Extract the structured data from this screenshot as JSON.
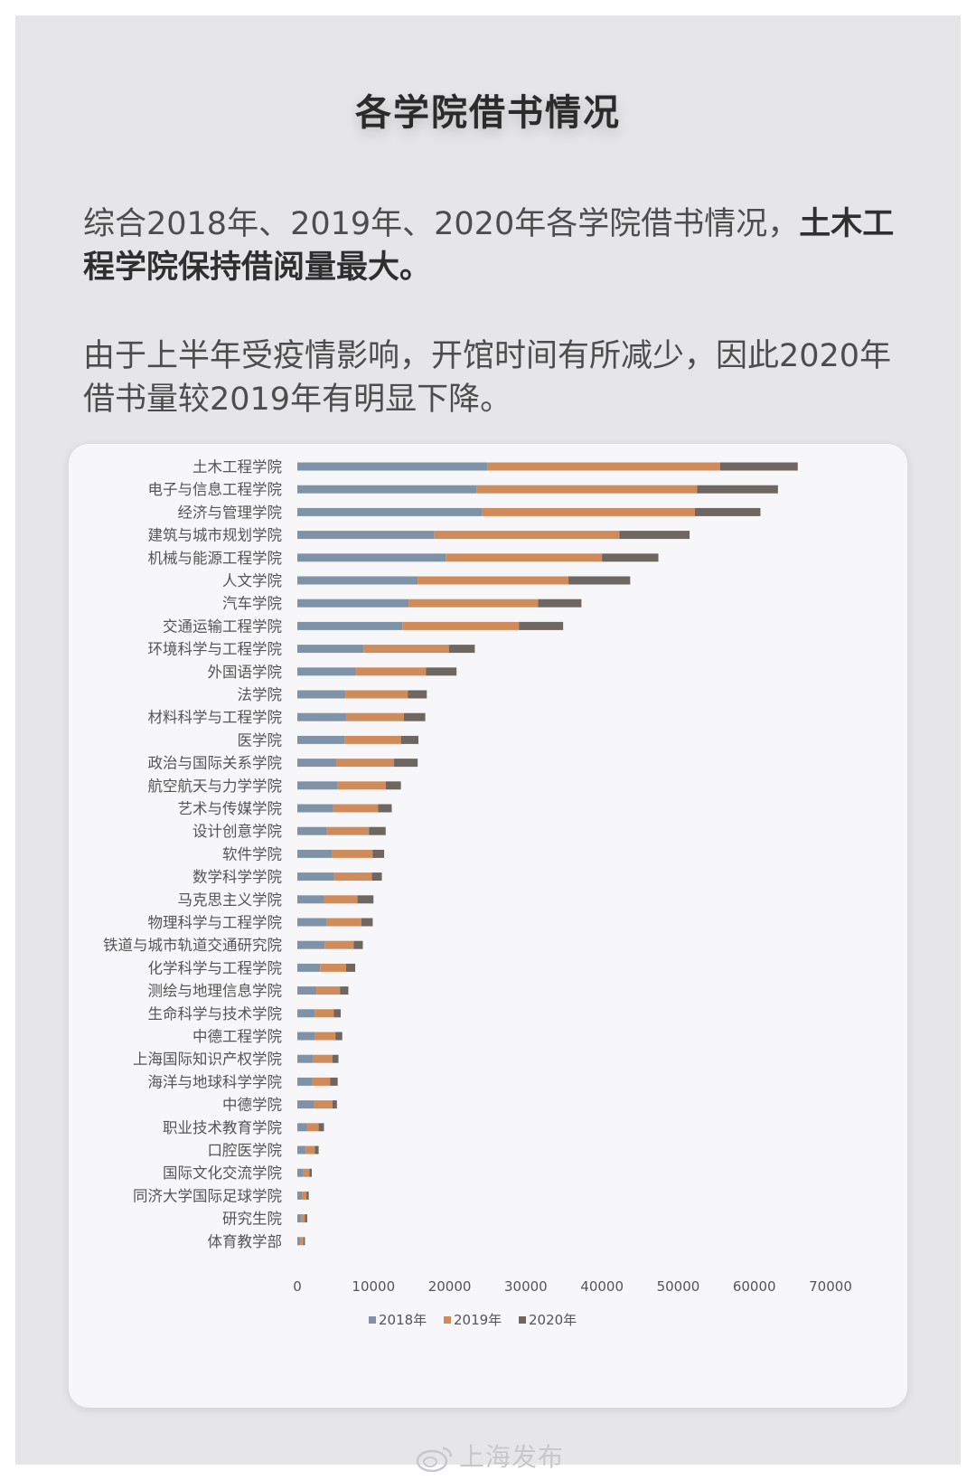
{
  "title": "各学院借书情况",
  "paragraph1": {
    "text": "综合2018年、2019年、2020年各学院借书情况，",
    "bold": "土木工程学院保持借阅量最大。"
  },
  "paragraph2": "由于上半年受疫情影响，开馆时间有所减少，因此2020年借书量较2019年有明显下降。",
  "watermark": "上海发布",
  "chart_data": {
    "type": "bar",
    "orientation": "horizontal",
    "stacked": true,
    "categories": [
      "土木工程学院",
      "电子与信息工程学院",
      "经济与管理学院",
      "建筑与城市规划学院",
      "机械与能源工程学院",
      "人文学院",
      "汽车学院",
      "交通运输工程学院",
      "环境科学与工程学院",
      "外国语学院",
      "法学院",
      "材料科学与工程学院",
      "医学院",
      "政治与国际关系学院",
      "航空航天与力学学院",
      "艺术与传媒学院",
      "设计创意学院",
      "软件学院",
      "数学科学学院",
      "马克思主义学院",
      "物理科学与工程学院",
      "铁道与城市轨道交通研究院",
      "化学科学与工程学院",
      "测绘与地理信息学院",
      "生命科学与技术学院",
      "中德工程学院",
      "上海国际知识产权学院",
      "海洋与地球科学学院",
      "中德学院",
      "职业技术教育学院",
      "口腔医学院",
      "国际文化交流学院",
      "同济大学国际足球学院",
      "研究生院",
      "体育教学部"
    ],
    "series": [
      {
        "name": "2018年",
        "color": "#7f93a8",
        "values": [
          25000,
          23500,
          24200,
          18000,
          19500,
          15800,
          14600,
          13800,
          8700,
          7700,
          6300,
          6400,
          6200,
          5100,
          5300,
          4700,
          3900,
          4500,
          4800,
          3500,
          3800,
          3600,
          3000,
          2500,
          2300,
          2300,
          2100,
          2000,
          2200,
          1300,
          1100,
          800,
          600,
          500,
          400
        ]
      },
      {
        "name": "2019年",
        "color": "#d08b5b",
        "values": [
          30500,
          29000,
          28000,
          24300,
          20500,
          19800,
          17000,
          15300,
          11200,
          9200,
          8200,
          7600,
          7400,
          7600,
          6300,
          5900,
          5500,
          5400,
          5000,
          4400,
          4600,
          3800,
          3400,
          3100,
          2500,
          2700,
          2500,
          2300,
          2400,
          1500,
          1200,
          800,
          600,
          500,
          400
        ]
      },
      {
        "name": "2020年",
        "color": "#6e6661",
        "values": [
          10200,
          10600,
          8600,
          9200,
          7400,
          8100,
          5700,
          5800,
          3400,
          4000,
          2500,
          2800,
          2300,
          3100,
          2000,
          1800,
          2200,
          1500,
          1300,
          2100,
          1500,
          1200,
          1200,
          1100,
          900,
          900,
          800,
          1000,
          600,
          700,
          500,
          300,
          300,
          300,
          200
        ]
      }
    ],
    "xlim": [
      0,
      70000
    ],
    "xticks": [
      0,
      10000,
      20000,
      30000,
      40000,
      50000,
      60000,
      70000
    ],
    "xtick_labels": [
      "0",
      "10000",
      "20000",
      "30000",
      "40000",
      "50000",
      "60000",
      "70000"
    ],
    "legend_position": "bottom",
    "grid": false
  }
}
